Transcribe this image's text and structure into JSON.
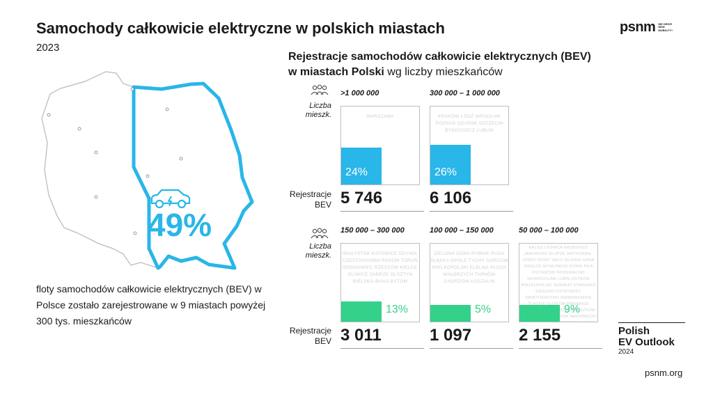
{
  "header": {
    "title": "Samochody całkowicie elektryczne w polskich miastach",
    "year": "2023",
    "logo_word": "psnm",
    "logo_tagline": "WE DRIVE NEW MOBILITY!"
  },
  "map": {
    "share_value": 49,
    "share_label": "49%",
    "description": "floty samochodów całkowicie elektrycznych (BEV) w Polsce zostało zarejestrowane w 9 miastach powyżej 300 tys. mieszkańców",
    "colors": {
      "accent": "#29b6e8",
      "outline": "#29b6e8"
    }
  },
  "chart_heading": {
    "line1": "Rejestracje samochodów całkowicie elektrycznych (BEV)",
    "line2_bold": "w miastach Polski",
    "line2_rest": " wg liczby mieszkańców"
  },
  "labels": {
    "population_line1": "Liczba",
    "population_line2": "mieszk.",
    "registrations_line1": "Rejestracje",
    "registrations_line2": "BEV"
  },
  "chart_data": {
    "type": "bar",
    "categories": [
      ">1 000 000",
      "300 000 – 1 000 000",
      "150 000 – 300 000",
      "100 000 – 150 000",
      "50 000 – 100 000"
    ],
    "values": [
      24,
      26,
      13,
      5,
      9
    ],
    "value_labels": [
      "24%",
      "26%",
      "13%",
      "5%",
      "9%"
    ],
    "registrations": [
      "5 746",
      "6 106",
      "3 011",
      "1 097",
      "2 155"
    ],
    "cities": [
      "WARSZAWA",
      "KRAKÓW ŁÓDŹ WROCŁAW POZNAŃ GDAŃSK SZCZECIN BYDGOSZCZ LUBLIN",
      "BIAŁYSTOK KATOWICE GDYNIA CZĘSTOCHOWA RADOM TORUŃ SOSNOWIEC RZESZÓW KIELCE GLIWICE ZABRZE OLSZTYN BIELSKO-BIAŁA BYTOM",
      "ZIELONA GÓRA RYBNIK RUDA ŚLĄSKA OPOLE TYCHY GORZÓW WIELKOPOLSKI ELBLĄG PŁOCK WAŁBRZYCH TARNÓW CHORZÓW KOSZALIN",
      "KALISZ LEGNICA GRUDZIĄDZ JAWORZNO SŁUPSK JASTRZĘBIE-ZDRÓJ NOWY SĄCZ JELENIA GÓRA SIEDLCE MYSŁOWICE KONIN PIŁA PIOTRKÓW TRYBUNALSKI INOWROCŁAW LUBIN OSTRÓW WIELKOPOLSKI SUWAŁKI STARGARD GNIEZNO OSTROWIEC ŚWIĘTOKRZYSKI SIEMIANOWICE ŚLĄSKIE GŁOGÓW PABIANICE LESZNO ŻORY ZAMOŚĆ PRUSZKÓW ŁOMŻA EŁK TOMASZÓW MAZOWIECKI CHEŁM MIELEC KĘDZIERZYN-KOŹLE PRZEMYŚL STALOWA WOLA TCZEW BIAŁA PODLASKA BEŁCHATÓW ŚWIDNICA BĘDZIN ZGIERZ PIEKARY ŚLĄSKIE RACIBÓRZ LEGIONOWO OSTROŁĘKA ŚWIĘTOCHŁOWICE"
    ],
    "series_colors": [
      "#29b6e8",
      "#29b6e8",
      "#33d18a",
      "#33d18a",
      "#33d18a"
    ],
    "ylim": [
      0,
      100
    ]
  },
  "footer": {
    "peo_line1": "Polish",
    "peo_line2": "EV Outlook",
    "peo_year": "2024",
    "site": "psnm.org"
  }
}
